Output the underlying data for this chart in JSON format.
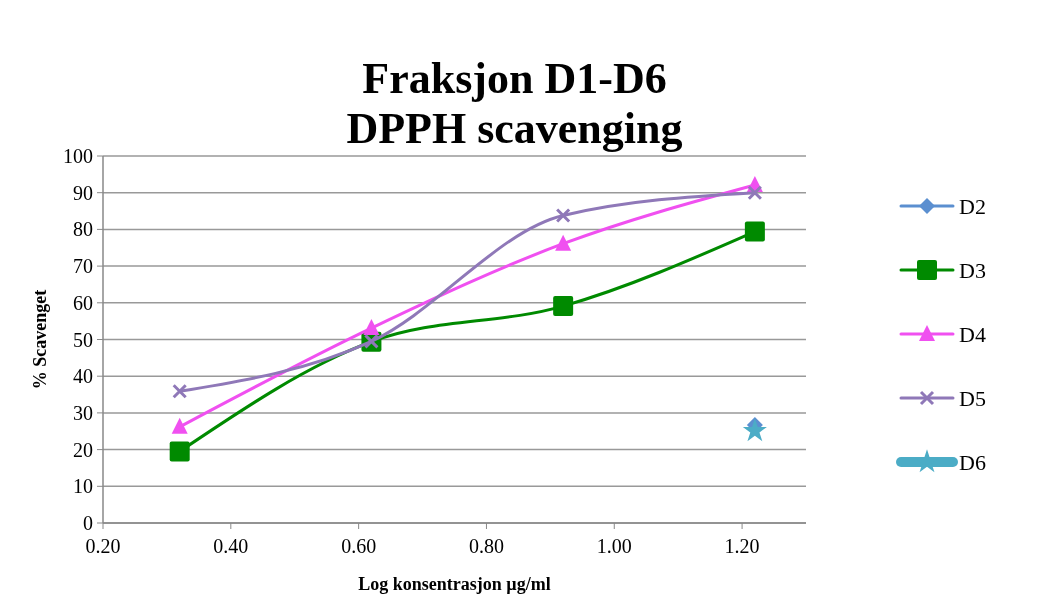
{
  "chart_data": {
    "type": "line",
    "title": "Fraksjon D1-D6\nDPPH scavenging",
    "xlabel": "Log konsentrasjon µg/ml",
    "ylabel": "% Scavenget",
    "xlim": [
      0.2,
      1.3
    ],
    "xticks": [
      {
        "value": 0.2,
        "label": "0.20"
      },
      {
        "value": 0.4,
        "label": "0.40"
      },
      {
        "value": 0.6,
        "label": "0.60"
      },
      {
        "value": 0.8,
        "label": "0.80"
      },
      {
        "value": 1.0,
        "label": "1.00"
      },
      {
        "value": 1.2,
        "label": "1.20"
      }
    ],
    "ylim": [
      0,
      100
    ],
    "yticks": [
      0,
      10,
      20,
      30,
      40,
      50,
      60,
      70,
      80,
      90,
      100
    ],
    "grid": "y",
    "legend": "right",
    "series": [
      {
        "name": "D2",
        "color": "#5b8fd0",
        "marker": "diamond",
        "x": [
          1.22
        ],
        "values": [
          26.7
        ]
      },
      {
        "name": "D3",
        "color": "#008a00",
        "marker": "square",
        "x": [
          0.32,
          0.62,
          0.92,
          1.22
        ],
        "values": [
          19.5,
          49.4,
          59.1,
          79.4
        ]
      },
      {
        "name": "D4",
        "color": "#f050f0",
        "marker": "triangle",
        "x": [
          0.32,
          0.62,
          0.92,
          1.22
        ],
        "values": [
          26.2,
          53.1,
          76.1,
          92.1
        ]
      },
      {
        "name": "D5",
        "color": "#8f78b8",
        "marker": "cross",
        "x": [
          0.32,
          0.62,
          0.92,
          1.22
        ],
        "values": [
          35.9,
          49.5,
          83.8,
          90
        ]
      },
      {
        "name": "D6",
        "color": "#4bacc6",
        "marker": "star",
        "x": [
          1.22
        ],
        "values": [
          25.1
        ]
      }
    ]
  }
}
